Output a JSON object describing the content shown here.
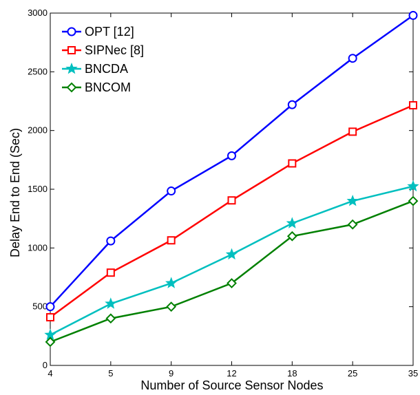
{
  "chart_data": {
    "type": "line",
    "title": "",
    "xlabel": "Number of Source Sensor Nodes",
    "ylabel": "Delay End to End (Sec)",
    "categories": [
      "4",
      "5",
      "9",
      "12",
      "18",
      "25",
      "35"
    ],
    "ylim": [
      0,
      3000
    ],
    "yticks": [
      0,
      500,
      1000,
      1500,
      2000,
      2500,
      3000
    ],
    "grid": false,
    "legend_position": "top-left",
    "series": [
      {
        "name": "OPT [12]",
        "color": "#0000ff",
        "marker": "circle",
        "values": [
          500,
          1060,
          1485,
          1785,
          2220,
          2615,
          2980
        ]
      },
      {
        "name": "SIPNec [8]",
        "color": "#ff0000",
        "marker": "square",
        "values": [
          410,
          790,
          1065,
          1405,
          1720,
          1990,
          2215
        ]
      },
      {
        "name": "BNCDA",
        "color": "#00bfbf",
        "marker": "star",
        "values": [
          260,
          525,
          700,
          945,
          1210,
          1400,
          1525
        ]
      },
      {
        "name": "BNCOM",
        "color": "#008000",
        "marker": "diamond",
        "values": [
          200,
          400,
          500,
          700,
          1100,
          1200,
          1400
        ]
      }
    ]
  }
}
